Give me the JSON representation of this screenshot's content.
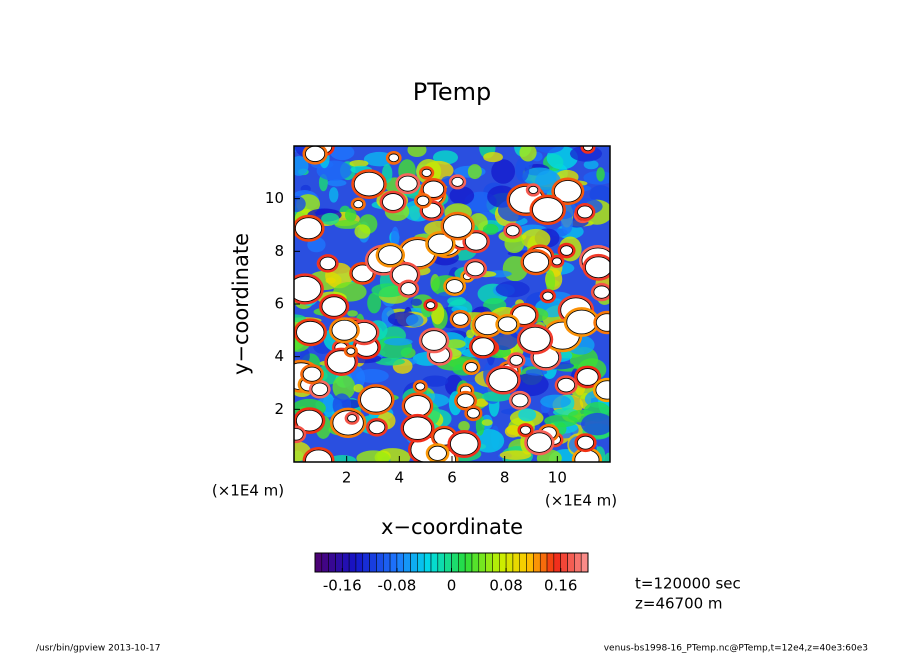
{
  "chart_data": {
    "type": "heatmap",
    "title": "PTemp",
    "x_label": "x−coordinate",
    "y_label": "y−coordinate",
    "x_unit_left": "(×1E4 m)",
    "x_unit_right": "(×1E4 m)",
    "xlim": [
      0,
      12
    ],
    "ylim": [
      0,
      12
    ],
    "xticks": [
      2,
      4,
      6,
      8,
      10
    ],
    "yticks": [
      2,
      4,
      6,
      8,
      10
    ],
    "colorbar": {
      "lim": [
        -0.2,
        0.2
      ],
      "ticks": [
        -0.16,
        -0.08,
        0,
        0.08,
        0.16
      ]
    },
    "annotations": [
      "t=120000 sec",
      "z=46700 m"
    ],
    "footer_left": "/usr/bin/gpview  2013-10-17",
    "footer_right": "venus-bs1998-16_PTemp.nc@PTemp,t=12e4,z=40e3:60e3"
  }
}
